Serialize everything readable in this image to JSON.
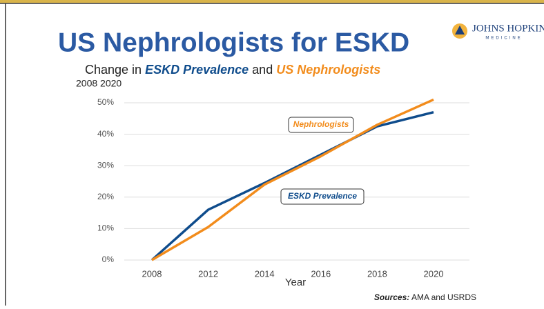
{
  "header": {
    "logo_name": "JOHNS HOPKINS",
    "logo_sub": "MEDICINE"
  },
  "chart_data": {
    "type": "line",
    "title": "US Nephrologists for ESKD",
    "subtitle": {
      "lead": "Change in ",
      "first": "ESKD Prevalence",
      "mid": " and ",
      "second": "US Nephrologists"
    },
    "period": "2008 2020",
    "x_label": "Year",
    "categories": [
      "2008",
      "2012",
      "2014",
      "2016",
      "2018",
      "2020"
    ],
    "series": [
      {
        "name": "ESKD Prevalence",
        "color": "#0f4c8c",
        "values": [
          0,
          16,
          24.5,
          33.5,
          42.5,
          47
        ]
      },
      {
        "name": "Nephrologists",
        "color": "#f28c1c",
        "values": [
          0,
          10.5,
          24,
          33,
          43,
          51
        ]
      }
    ],
    "ylim": [
      0,
      50
    ],
    "yticks": [
      {
        "value": 0,
        "label": "0%"
      },
      {
        "value": 10,
        "label": "10%"
      },
      {
        "value": 20,
        "label": "20%"
      },
      {
        "value": 30,
        "label": "30%"
      },
      {
        "value": 40,
        "label": "40%"
      },
      {
        "value": 50,
        "label": "50%"
      }
    ],
    "grid": true,
    "source": {
      "label": "Sources:",
      "text": " AMA and USRDS"
    }
  }
}
